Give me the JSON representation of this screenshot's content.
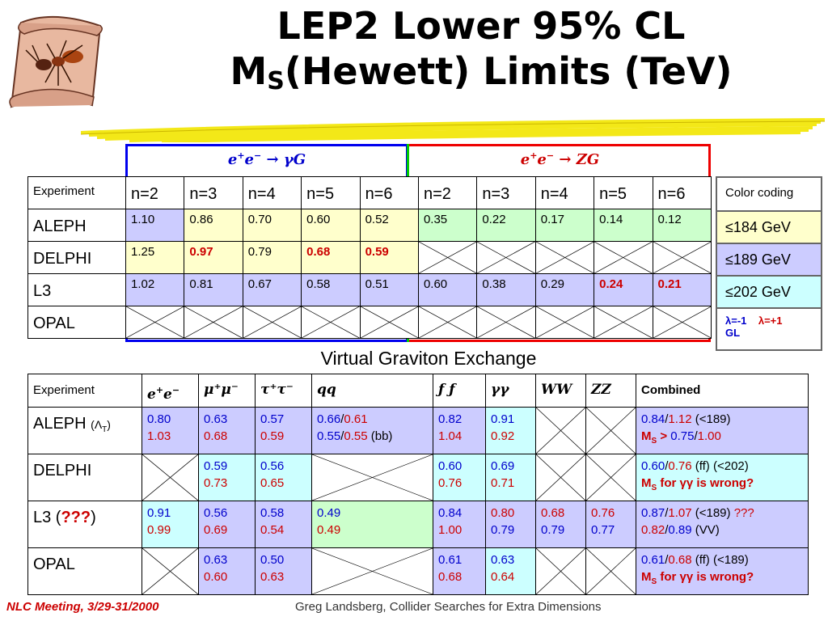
{
  "title": {
    "line1": "LEP2 Lower 95% CL",
    "line2_pre": "M",
    "line2_sub": "S",
    "line2_post": "(Hewett) Limits (TeV)"
  },
  "top": {
    "process_g": "γG",
    "process_z": "ZG",
    "header_experiment": "Experiment",
    "n_labels": [
      "n=2",
      "n=3",
      "n=4",
      "n=5",
      "n=6",
      "n=2",
      "n=3",
      "n=4",
      "n=5",
      "n=6"
    ],
    "rows": [
      {
        "name": "ALEPH",
        "values": [
          "1.10",
          "0.86",
          "0.70",
          "0.60",
          "0.52",
          "0.35",
          "0.22",
          "0.17",
          "0.14",
          "0.12"
        ]
      },
      {
        "name": "DELPHI",
        "values": [
          "1.25",
          "0.97",
          "0.79",
          "0.68",
          "0.59"
        ]
      },
      {
        "name": "L3",
        "values": [
          "1.02",
          "0.81",
          "0.67",
          "0.58",
          "0.51",
          "0.60",
          "0.38",
          "0.29",
          "0.24",
          "0.21"
        ]
      },
      {
        "name": "OPAL",
        "values": []
      }
    ]
  },
  "key": {
    "header": "Color coding",
    "c1": "184 GeV",
    "c2": "189 GeV",
    "c3": "202 GeV",
    "lam_minus": "=-1",
    "lam_plus": "=+1",
    "gl": "GL"
  },
  "subtitle": "Virtual Graviton Exchange",
  "bottom": {
    "header_experiment": "Experiment",
    "cols": [
      "μ⁺μ⁻",
      "τ⁺τ⁻",
      "qq",
      "ƒ ƒ",
      "γγ",
      "WW",
      "ZZ",
      "Combined"
    ],
    "aleph_name": "ALEPH",
    "aleph_tag": "(Λ",
    "aleph_tag_sub": "T",
    "aleph_tag_end": ")",
    "delphi_name": "DELPHI",
    "l3_name": "L3 (",
    "l3_q": "???",
    "l3_end": ")",
    "opal_name": "OPAL",
    "aleph": {
      "ee": [
        "0.80",
        "1.03"
      ],
      "mm": [
        "0.63",
        "0.68"
      ],
      "tt": [
        "0.57",
        "0.59"
      ],
      "qq1a": "0.66",
      "qq1b": "0.61",
      "qq2a": "0.55",
      "qq2b": "0.55",
      "qq2c": " (bb)",
      "ff": [
        "0.82",
        "1.04"
      ],
      "gg": [
        "0.91",
        "0.92"
      ],
      "c1a": "0.84",
      "c1b": "1.12",
      "c1c": " (<189)",
      "c2a": "M",
      "c2s": "S",
      "c2b": " > ",
      "c2c": "0.75",
      "c2d": "1.00"
    },
    "delphi": {
      "mm": [
        "0.59",
        "0.73"
      ],
      "tt": [
        "0.56",
        "0.65"
      ],
      "ff": [
        "0.60",
        "0.76"
      ],
      "gg": [
        "0.69",
        "0.71"
      ],
      "c1a": "0.60",
      "c1b": "0.76",
      "c1c": " (ff) (<202)",
      "c2a": "M",
      "c2s": "S",
      "c2b": " for γγ is wrong?"
    },
    "l3": {
      "ee": [
        "0.91",
        "0.99"
      ],
      "mm": [
        "0.56",
        "0.69"
      ],
      "tt": [
        "0.58",
        "0.54"
      ],
      "qq": [
        "0.49",
        "0.49"
      ],
      "ff": [
        "0.84",
        "1.00"
      ],
      "gg": [
        "0.80",
        "0.79"
      ],
      "ww": [
        "0.68",
        "0.79"
      ],
      "zz": [
        "0.76",
        "0.77"
      ],
      "c1a": "0.87",
      "c1b": "1.07",
      "c1c": " (<189) ",
      "c1d": "???",
      "c2a": "0.82",
      "c2b": "0.89",
      "c2c": " (VV)"
    },
    "opal": {
      "mm": [
        "0.63",
        "0.60"
      ],
      "tt": [
        "0.50",
        "0.63"
      ],
      "ff": [
        "0.61",
        "0.68"
      ],
      "gg": [
        "0.63",
        "0.64"
      ],
      "c1a": "0.61",
      "c1b": "0.68",
      "c1c": " (ff) (<189)",
      "c2a": "M",
      "c2s": "S",
      "c2b": " for γγ is wrong?"
    }
  },
  "footer": {
    "left": "NLC Meeting, 3/29-31/2000",
    "right": "Greg Landsberg, Collider Searches for Extra Dimensions"
  }
}
